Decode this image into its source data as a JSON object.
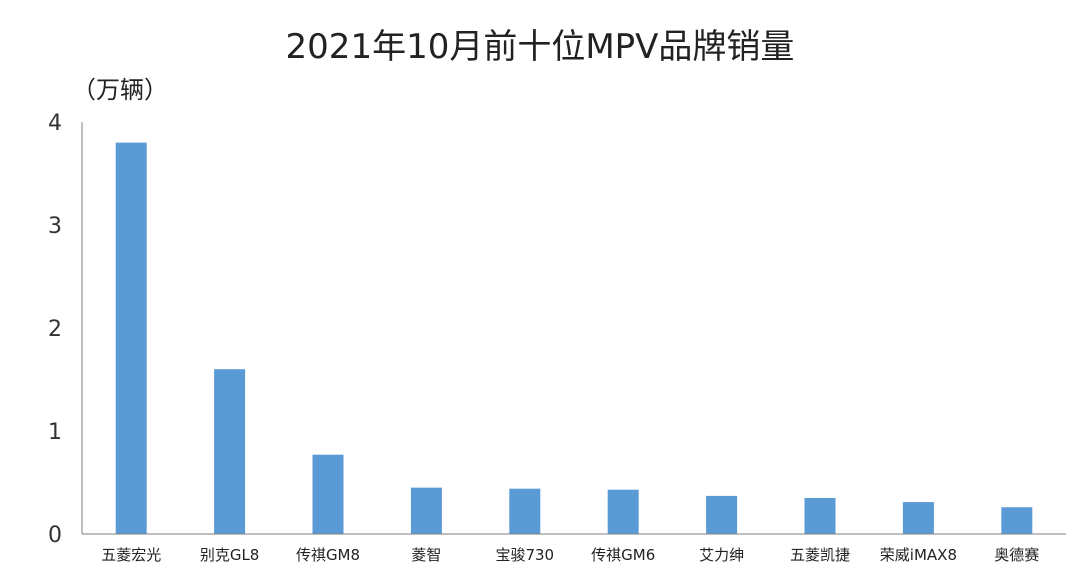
{
  "chart_data": {
    "type": "bar",
    "title": "2021年10月前十位MPV品牌销量",
    "unit_label": "（万辆）",
    "xlabel": "",
    "ylabel": "",
    "ylim": [
      0,
      4
    ],
    "yticks": [
      0,
      1,
      2,
      3,
      4
    ],
    "grid": false,
    "bar_color": "#5b9bd5",
    "axis_color": "#7f7f7f",
    "categories": [
      "五菱宏光",
      "别克GL8",
      "传祺GM8",
      "菱智",
      "宝骏730",
      "传祺GM6",
      "艾力绅",
      "五菱凯捷",
      "荣威iMAX8",
      "奥德赛"
    ],
    "values": [
      3.8,
      1.6,
      0.77,
      0.45,
      0.44,
      0.43,
      0.37,
      0.35,
      0.31,
      0.26
    ]
  }
}
